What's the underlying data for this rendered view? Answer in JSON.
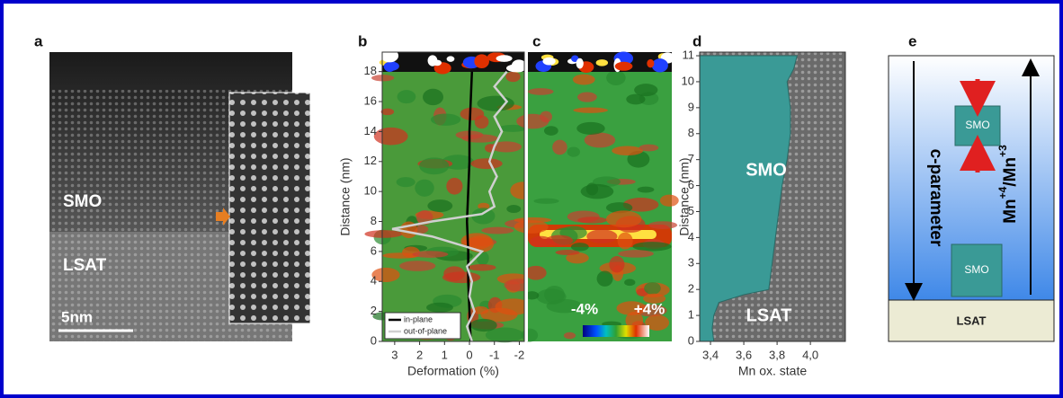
{
  "panels": {
    "a": {
      "label": "a",
      "layers": [
        "SMO",
        "LSAT"
      ],
      "scale_bar": "5nm"
    },
    "c": {
      "label": "c",
      "colorbar": [
        "-4%",
        "+4%"
      ]
    },
    "e": {
      "label": "e",
      "left_arrow": "c-parameter",
      "right_arrow": {
        "base": "Mn",
        "sup1": "+4",
        "mid": "/Mn",
        "sup2": "+3"
      },
      "boxes": [
        "SMO",
        "SMO"
      ],
      "substrate": "LSAT"
    }
  },
  "chart_data": [
    {
      "type": "line",
      "panel": "b",
      "ylabel": "Distance (nm)",
      "xlabel": "Deformation (%)",
      "xlim": [
        3.5,
        -2.2
      ],
      "xticks": [
        3,
        2,
        1,
        0,
        -1,
        -2
      ],
      "ylim": [
        0,
        19.3
      ],
      "yticks": [
        0,
        2,
        4,
        6,
        8,
        10,
        12,
        14,
        16,
        18
      ],
      "legend": "bottom-left",
      "series": [
        {
          "name": "in-plane",
          "color": "#000000",
          "x": [
            -0.05,
            0.0,
            0.05,
            0.05,
            0.1,
            0.05,
            0.0,
            0.0,
            -0.05,
            -0.1
          ],
          "y": [
            0,
            2,
            4,
            6,
            8,
            10,
            12,
            14,
            16,
            18
          ]
        },
        {
          "name": "out-of-plane",
          "color": "#d0d0d0",
          "x": [
            -0.1,
            0.1,
            -0.2,
            0.0,
            -0.1,
            0.1,
            -0.5,
            1.5,
            3.1,
            1.5,
            -0.5,
            -1.0,
            -0.8,
            -1.1,
            -0.8,
            -1.0,
            -1.3,
            -1.0,
            -1.5,
            -1.0,
            -1.5
          ],
          "y": [
            0,
            1,
            2,
            3,
            4,
            5,
            6,
            7,
            7.5,
            8,
            8.5,
            9,
            10,
            11,
            12,
            13,
            14,
            15,
            16,
            17,
            18
          ]
        }
      ]
    },
    {
      "type": "area",
      "panel": "d",
      "ylabel": "Distance (nm)",
      "xlabel": "Mn ox. state",
      "xlim": [
        3.335,
        4.21
      ],
      "xticks": [
        {
          "value": 3.4,
          "label": "3,4"
        },
        {
          "value": 3.6,
          "label": "3,6"
        },
        {
          "value": 3.8,
          "label": "3,8"
        },
        {
          "value": 4.0,
          "label": "4,0"
        }
      ],
      "ylim": [
        0,
        11.14
      ],
      "yticks": [
        0,
        1,
        2,
        3,
        4,
        5,
        6,
        7,
        8,
        9,
        10,
        11
      ],
      "annotations": [
        "SMO",
        "LSAT"
      ],
      "series": [
        {
          "color": "#3a9a96",
          "x": [
            3.42,
            3.41,
            3.42,
            3.45,
            3.6,
            3.75,
            3.77,
            3.79,
            3.81,
            3.83,
            3.86,
            3.88,
            3.88,
            3.86,
            3.9,
            3.92
          ],
          "y": [
            0,
            0.5,
            1,
            1.5,
            1.8,
            2,
            3,
            4,
            5,
            6,
            7,
            8,
            9,
            10,
            10.5,
            11
          ]
        }
      ]
    }
  ]
}
